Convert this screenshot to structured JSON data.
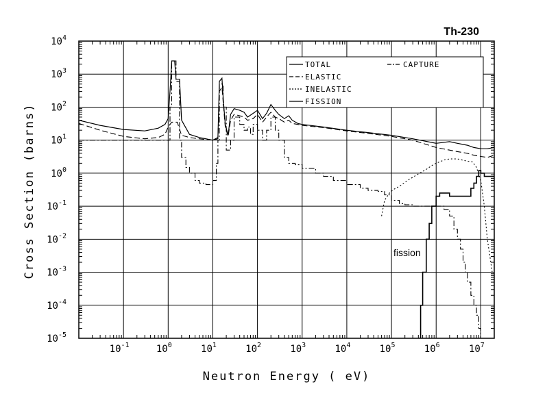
{
  "chart_data": {
    "type": "line",
    "title": "Th-230",
    "xlabel": "Neutron Energy ( eV)",
    "ylabel": "Cross Section (barns)",
    "x_scale": "log",
    "y_scale": "log",
    "xlim": [
      0.01,
      20000000
    ],
    "ylim": [
      1e-05,
      10000
    ],
    "grid": true,
    "legend_position": "top-right",
    "x_tick_labels": [
      {
        "base": "10",
        "exp": "-1",
        "value": 0.1
      },
      {
        "base": "10",
        "exp": "0",
        "value": 1
      },
      {
        "base": "10",
        "exp": "1",
        "value": 10
      },
      {
        "base": "10",
        "exp": "2",
        "value": 100
      },
      {
        "base": "10",
        "exp": "3",
        "value": 1000
      },
      {
        "base": "10",
        "exp": "4",
        "value": 10000
      },
      {
        "base": "10",
        "exp": "5",
        "value": 100000
      },
      {
        "base": "10",
        "exp": "6",
        "value": 1000000
      },
      {
        "base": "10",
        "exp": "7",
        "value": 10000000
      }
    ],
    "y_tick_labels": [
      {
        "base": "10",
        "exp": "4",
        "value": 10000
      },
      {
        "base": "10",
        "exp": "3",
        "value": 1000
      },
      {
        "base": "10",
        "exp": "2",
        "value": 100
      },
      {
        "base": "10",
        "exp": "1",
        "value": 10
      },
      {
        "base": "10",
        "exp": "0",
        "value": 1
      },
      {
        "base": "10",
        "exp": "-1",
        "value": 0.1
      },
      {
        "base": "10",
        "exp": "-2",
        "value": 0.01
      },
      {
        "base": "10",
        "exp": "-3",
        "value": 0.001
      },
      {
        "base": "10",
        "exp": "-4",
        "value": 0.0001
      },
      {
        "base": "10",
        "exp": "-5",
        "value": 1e-05
      }
    ],
    "annotations": [
      {
        "text": "fission",
        "x": 80000,
        "y": 0.0014
      }
    ],
    "series": [
      {
        "name": "TOTAL",
        "style": "solid",
        "step": false,
        "points": [
          [
            0.01,
            40
          ],
          [
            0.03,
            28
          ],
          [
            0.1,
            21
          ],
          [
            0.3,
            19
          ],
          [
            0.6,
            23
          ],
          [
            0.85,
            30
          ],
          [
            1.0,
            45
          ],
          [
            1.1,
            300
          ],
          [
            1.2,
            2500
          ],
          [
            1.4,
            2500
          ],
          [
            1.5,
            700
          ],
          [
            1.8,
            700
          ],
          [
            2.0,
            40
          ],
          [
            3,
            15
          ],
          [
            5,
            12
          ],
          [
            10,
            10
          ],
          [
            13,
            12
          ],
          [
            14,
            600
          ],
          [
            16,
            750
          ],
          [
            17,
            200
          ],
          [
            19,
            30
          ],
          [
            22,
            14
          ],
          [
            25,
            60
          ],
          [
            30,
            90
          ],
          [
            40,
            80
          ],
          [
            50,
            70
          ],
          [
            60,
            50
          ],
          [
            80,
            65
          ],
          [
            100,
            80
          ],
          [
            130,
            45
          ],
          [
            160,
            65
          ],
          [
            200,
            120
          ],
          [
            250,
            80
          ],
          [
            300,
            60
          ],
          [
            400,
            45
          ],
          [
            500,
            55
          ],
          [
            600,
            40
          ],
          [
            800,
            32
          ],
          [
            1000,
            30
          ],
          [
            3000,
            25
          ],
          [
            10000,
            20
          ],
          [
            30000,
            17
          ],
          [
            100000,
            14
          ],
          [
            300000,
            11
          ],
          [
            1000000,
            8
          ],
          [
            2000000,
            9
          ],
          [
            3000000,
            8
          ],
          [
            5000000,
            7
          ],
          [
            7000000,
            6
          ],
          [
            10000000,
            5.5
          ],
          [
            14000000,
            5.5
          ],
          [
            20000000,
            6
          ]
        ]
      },
      {
        "name": "ELASTIC",
        "style": "dashed",
        "step": false,
        "points": [
          [
            0.01,
            32
          ],
          [
            0.03,
            20
          ],
          [
            0.1,
            13
          ],
          [
            0.3,
            11
          ],
          [
            0.6,
            12
          ],
          [
            0.85,
            15
          ],
          [
            1.0,
            25
          ],
          [
            1.1,
            30
          ],
          [
            1.2,
            35
          ],
          [
            1.6,
            35
          ],
          [
            2.0,
            14
          ],
          [
            3,
            12
          ],
          [
            5,
            11
          ],
          [
            10,
            10
          ],
          [
            13,
            11
          ],
          [
            14,
            300
          ],
          [
            16,
            400
          ],
          [
            17,
            150
          ],
          [
            19,
            25
          ],
          [
            22,
            13
          ],
          [
            25,
            40
          ],
          [
            30,
            60
          ],
          [
            40,
            55
          ],
          [
            50,
            50
          ],
          [
            60,
            40
          ],
          [
            80,
            45
          ],
          [
            100,
            60
          ],
          [
            130,
            35
          ],
          [
            160,
            50
          ],
          [
            200,
            70
          ],
          [
            250,
            50
          ],
          [
            300,
            45
          ],
          [
            400,
            35
          ],
          [
            500,
            40
          ],
          [
            600,
            32
          ],
          [
            800,
            30
          ],
          [
            1000,
            28
          ],
          [
            3000,
            24
          ],
          [
            10000,
            19
          ],
          [
            30000,
            16
          ],
          [
            100000,
            13
          ],
          [
            300000,
            10
          ],
          [
            1000000,
            6
          ],
          [
            2000000,
            5
          ],
          [
            3000000,
            4.5
          ],
          [
            5000000,
            4
          ],
          [
            7000000,
            3.5
          ],
          [
            10000000,
            3.2
          ],
          [
            14000000,
            3
          ],
          [
            20000000,
            3.5
          ]
        ]
      },
      {
        "name": "INELASTIC",
        "style": "dotted",
        "step": false,
        "points": [
          [
            60000,
            0.05
          ],
          [
            70000,
            0.15
          ],
          [
            90000,
            0.25
          ],
          [
            110000,
            0.32
          ],
          [
            150000,
            0.4
          ],
          [
            250000,
            0.65
          ],
          [
            400000,
            0.95
          ],
          [
            600000,
            1.3
          ],
          [
            800000,
            1.7
          ],
          [
            1000000,
            2.0
          ],
          [
            1500000,
            2.5
          ],
          [
            2000000,
            2.7
          ],
          [
            3000000,
            2.7
          ],
          [
            5000000,
            2.3
          ],
          [
            6500000,
            2.2
          ],
          [
            8000000,
            1.5
          ],
          [
            10000000,
            0.6
          ],
          [
            12000000,
            0.1
          ],
          [
            14000000,
            0.01
          ],
          [
            16000000,
            0.003
          ],
          [
            18000000,
            0.001
          ]
        ]
      },
      {
        "name": "CAPTURE",
        "style": "dash-dot",
        "step": true,
        "points": [
          [
            0.01,
            10
          ],
          [
            0.1,
            10
          ],
          [
            1.0,
            10
          ],
          [
            1.1,
            100
          ],
          [
            1.2,
            2500
          ],
          [
            1.5,
            600
          ],
          [
            1.8,
            10
          ],
          [
            2.0,
            3
          ],
          [
            2.5,
            1.5
          ],
          [
            3,
            1
          ],
          [
            4,
            0.6
          ],
          [
            5,
            0.5
          ],
          [
            7,
            0.45
          ],
          [
            10,
            0.6
          ],
          [
            12,
            2
          ],
          [
            13,
            10
          ],
          [
            14,
            500
          ],
          [
            17,
            100
          ],
          [
            20,
            5
          ],
          [
            25,
            10
          ],
          [
            30,
            50
          ],
          [
            40,
            30
          ],
          [
            50,
            20
          ],
          [
            60,
            25
          ],
          [
            70,
            15
          ],
          [
            80,
            30
          ],
          [
            100,
            20
          ],
          [
            130,
            10
          ],
          [
            160,
            20
          ],
          [
            200,
            50
          ],
          [
            250,
            20
          ],
          [
            300,
            10
          ],
          [
            400,
            3
          ],
          [
            500,
            2
          ],
          [
            700,
            1.8
          ],
          [
            1000,
            1.4
          ],
          [
            2000,
            1
          ],
          [
            3000,
            0.8
          ],
          [
            5000,
            0.6
          ],
          [
            10000,
            0.45
          ],
          [
            20000,
            0.35
          ],
          [
            30000,
            0.3
          ],
          [
            50000,
            0.28
          ],
          [
            70000,
            0.22
          ],
          [
            100000,
            0.15
          ],
          [
            150000,
            0.12
          ],
          [
            200000,
            0.11
          ],
          [
            300000,
            0.1
          ],
          [
            500000,
            0.1
          ],
          [
            1000000,
            0.1
          ],
          [
            1500000,
            0.08
          ],
          [
            2000000,
            0.05
          ],
          [
            2500000,
            0.02
          ],
          [
            3000000,
            0.01
          ],
          [
            3500000,
            0.005
          ],
          [
            4000000,
            0.002
          ],
          [
            4500000,
            0.001
          ],
          [
            5000000,
            0.0005
          ],
          [
            6000000,
            0.0002
          ],
          [
            7000000,
            0.0001
          ],
          [
            8000000,
            5e-05
          ],
          [
            9000000,
            2e-05
          ],
          [
            10000000,
            1e-05
          ]
        ]
      },
      {
        "name": "FISSION",
        "style": "solid",
        "step": true,
        "points": [
          [
            420000,
            1e-05
          ],
          [
            450000,
            0.0001
          ],
          [
            500000,
            0.001
          ],
          [
            600000,
            0.01
          ],
          [
            700000,
            0.03
          ],
          [
            800000,
            0.1
          ],
          [
            1000000,
            0.2
          ],
          [
            1200000,
            0.25
          ],
          [
            1500000,
            0.25
          ],
          [
            2000000,
            0.2
          ],
          [
            2500000,
            0.2
          ],
          [
            3000000,
            0.2
          ],
          [
            4000000,
            0.2
          ],
          [
            5000000,
            0.2
          ],
          [
            6000000,
            0.35
          ],
          [
            7000000,
            0.5
          ],
          [
            8000000,
            0.8
          ],
          [
            9000000,
            1.2
          ],
          [
            10000000,
            1.0
          ],
          [
            12000000,
            0.8
          ],
          [
            15000000,
            0.8
          ],
          [
            20000000,
            0.8
          ]
        ]
      }
    ]
  }
}
